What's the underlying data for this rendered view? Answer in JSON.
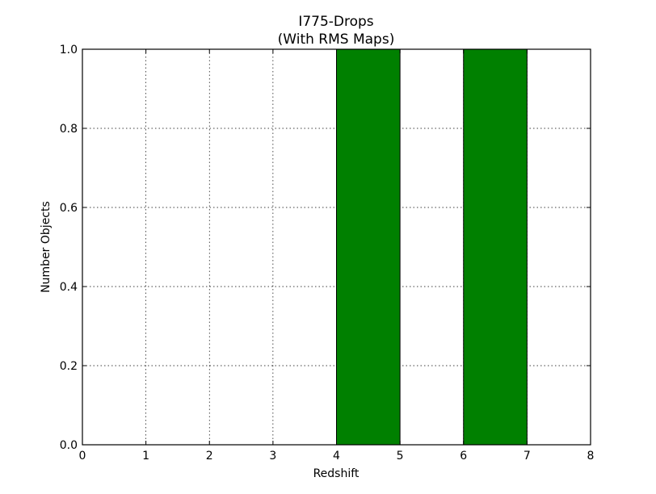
{
  "chart_data": {
    "type": "bar",
    "title": "I775-Drops",
    "subtitle": "(With RMS Maps)",
    "xlabel": "Redshift",
    "ylabel": "Number Objects",
    "xlim": [
      0,
      8
    ],
    "ylim": [
      0,
      1.0
    ],
    "x_ticks": [
      "0",
      "1",
      "2",
      "3",
      "4",
      "5",
      "6",
      "7",
      "8"
    ],
    "y_ticks": [
      "0.0",
      "0.2",
      "0.4",
      "0.6",
      "0.8",
      "1.0"
    ],
    "grid": true,
    "bar_color": "#008000",
    "bins": [
      {
        "x0": 0,
        "x1": 1,
        "value": 0
      },
      {
        "x0": 1,
        "x1": 2,
        "value": 0
      },
      {
        "x0": 2,
        "x1": 3,
        "value": 0
      },
      {
        "x0": 3,
        "x1": 4,
        "value": 0
      },
      {
        "x0": 4,
        "x1": 5,
        "value": 1
      },
      {
        "x0": 5,
        "x1": 6,
        "value": 0
      },
      {
        "x0": 6,
        "x1": 7,
        "value": 1
      },
      {
        "x0": 7,
        "x1": 8,
        "value": 0
      }
    ]
  }
}
